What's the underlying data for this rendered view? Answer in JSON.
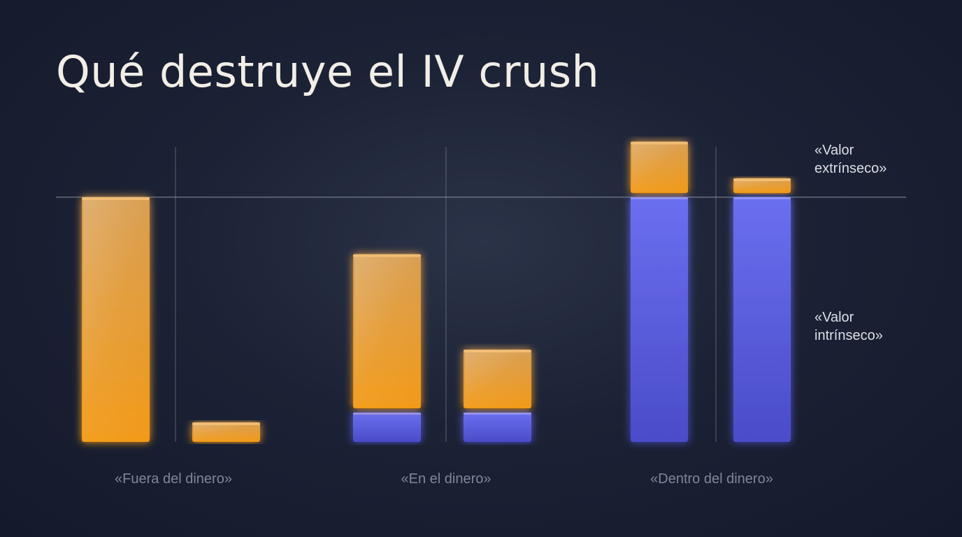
{
  "title": "Qué destruye el IV crush",
  "legend": {
    "extrinsic": {
      "line1": "«Valor",
      "line2": "extrínseco»",
      "color": "#f0a020"
    },
    "intrinsic": {
      "line1": "«Valor",
      "line2": "intrínseco»",
      "color": "#5b5ee6"
    }
  },
  "groups": [
    {
      "label": "«Fuera del dinero»"
    },
    {
      "label": "«En el dinero»"
    },
    {
      "label": "«Dentro del dinero»"
    }
  ],
  "chart_data": {
    "type": "bar",
    "stacked": true,
    "ylim": [
      0,
      1.2
    ],
    "reference_line": 1.0,
    "categories": [
      "«Fuera del dinero»",
      "«Fuera del dinero»",
      "«En el dinero»",
      "«En el dinero»",
      "«Dentro del dinero»",
      "«Dentro del dinero»"
    ],
    "series": [
      {
        "name": "«Valor intrínseco»",
        "values": [
          0,
          0,
          0.12,
          0.12,
          1.0,
          1.0
        ]
      },
      {
        "name": "«Valor extrínseco»",
        "values": [
          1.0,
          0.08,
          0.63,
          0.24,
          0.21,
          0.06
        ]
      }
    ]
  }
}
